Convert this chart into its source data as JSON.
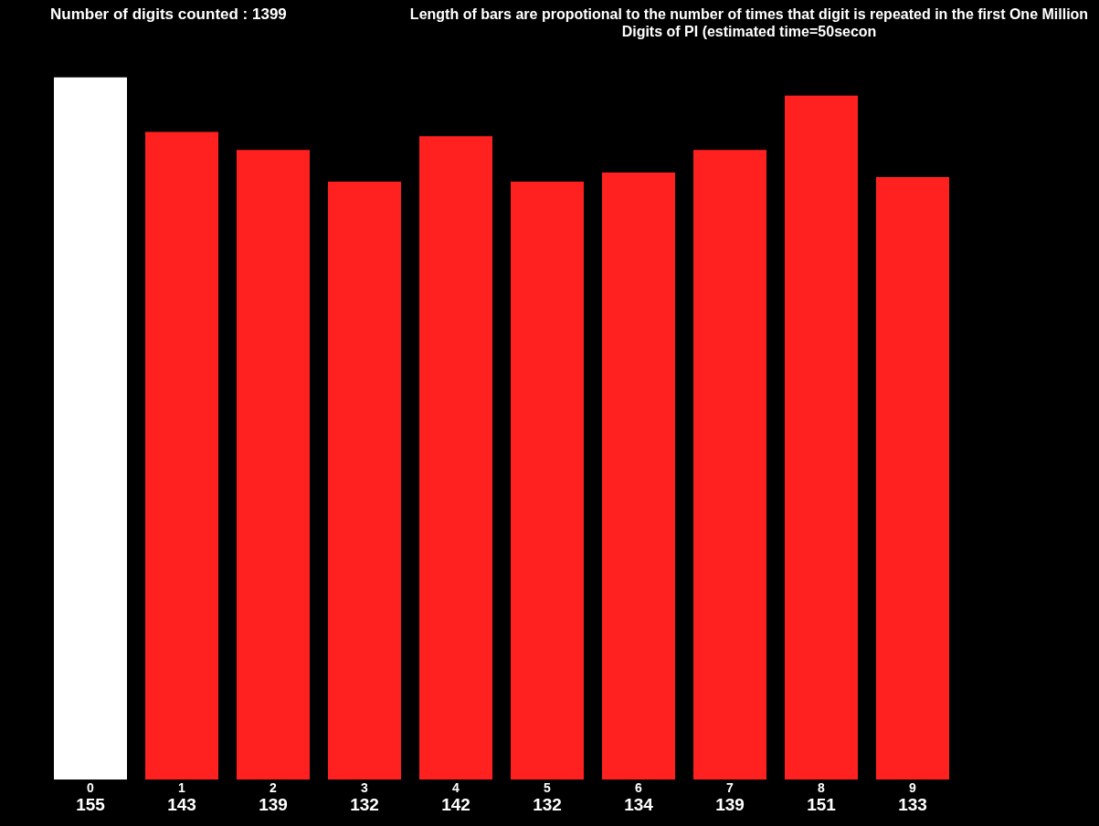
{
  "chart_data": {
    "type": "bar",
    "title": "Number of digits counted : 1399",
    "subtitle": "Length of bars are propotional to the number of times that digit is repeated in the first One Million Digits of PI (estimated time=50secon",
    "categories": [
      "0",
      "1",
      "2",
      "3",
      "4",
      "5",
      "6",
      "7",
      "8",
      "9"
    ],
    "values": [
      155,
      143,
      139,
      132,
      142,
      132,
      134,
      139,
      151,
      133
    ],
    "colors": [
      "#ffffff",
      "#ff2020",
      "#ff2020",
      "#ff2020",
      "#ff2020",
      "#ff2020",
      "#ff2020",
      "#ff2020",
      "#ff2020",
      "#ff2020"
    ],
    "data_labels": true,
    "legend": false
  }
}
